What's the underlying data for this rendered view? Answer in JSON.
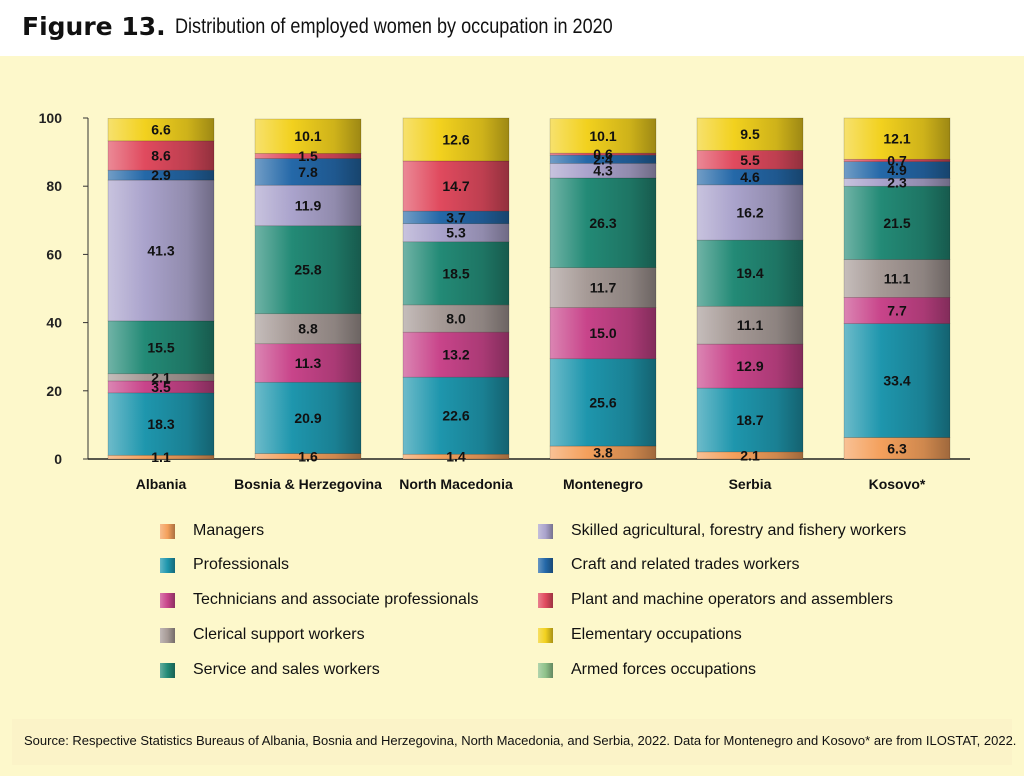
{
  "figure": {
    "label": "Figure 13.",
    "title": "Distribution of employed women by occupation in 2020"
  },
  "source": "Source: Respective Statistics Bureaus of Albania, Bosnia and Herzegovina, North Macedonia, and Serbia, 2022. Data for Montenegro and Kosovo* are from ILOSTAT, 2022.",
  "legend": [
    {
      "name": "Managers",
      "color": "#f4a05c"
    },
    {
      "name": "Skilled agricultural, forestry and fishery workers",
      "color": "#aaa3cc"
    },
    {
      "name": "Professionals",
      "color": "#1e96ad"
    },
    {
      "name": "Craft and related trades workers",
      "color": "#2468a8"
    },
    {
      "name": "Technicians and associate professionals",
      "color": "#c8448a"
    },
    {
      "name": "Plant and machine operators and assemblers",
      "color": "#e04a5e"
    },
    {
      "name": "Clerical support workers",
      "color": "#a69a96"
    },
    {
      "name": "Elementary occupations",
      "color": "#f2d11e"
    },
    {
      "name": "Service and sales workers",
      "color": "#238a76"
    },
    {
      "name": "Armed forces occupations",
      "color": "#8fc28a"
    }
  ],
  "chart_data": {
    "type": "bar",
    "stacked": true,
    "title": "Distribution of employed women by occupation in 2020",
    "xlabel": "",
    "ylabel": "",
    "ylim": [
      0,
      100
    ],
    "yticks": [
      "0",
      "20",
      "40",
      "60",
      "80",
      "100"
    ],
    "categories": [
      "Albania",
      "Bosnia & Herzegovina",
      "North Macedonia",
      "Montenegro",
      "Serbia",
      "Kosovo*"
    ],
    "series": [
      {
        "name": "Managers",
        "color": "#f4a05c",
        "values": [
          1.1,
          1.6,
          1.4,
          3.8,
          2.1,
          6.3
        ],
        "labels": [
          "1.1",
          "1.6",
          "1.4",
          "3.8",
          "2.1",
          "6.3"
        ]
      },
      {
        "name": "Professionals",
        "color": "#1e96ad",
        "values": [
          18.3,
          20.9,
          22.6,
          25.6,
          18.7,
          33.4
        ],
        "labels": [
          "18.3",
          "20.9",
          "22.6",
          "25.6",
          "18.7",
          "33.4"
        ]
      },
      {
        "name": "Technicians and associate professionals",
        "color": "#c8448a",
        "values": [
          3.5,
          11.3,
          13.2,
          15.0,
          12.9,
          7.7
        ],
        "labels": [
          "3.5",
          "11.3",
          "13.2",
          "15.0",
          "12.9",
          "7.7"
        ]
      },
      {
        "name": "Clerical support workers",
        "color": "#a69a96",
        "values": [
          2.1,
          8.8,
          8.0,
          11.7,
          11.1,
          11.1
        ],
        "labels": [
          "2.1",
          "8.8",
          "8.0",
          "11.7",
          "11.1",
          "11.1"
        ]
      },
      {
        "name": "Service and sales workers",
        "color": "#238a76",
        "values": [
          15.5,
          25.8,
          18.5,
          26.3,
          19.4,
          21.5
        ],
        "labels": [
          "15.5",
          "25.8",
          "18.5",
          "26.3",
          "19.4",
          "21.5"
        ]
      },
      {
        "name": "Skilled agricultural, forestry and fishery workers",
        "color": "#aaa3cc",
        "values": [
          41.3,
          11.9,
          5.3,
          4.3,
          16.2,
          2.3
        ],
        "labels": [
          "41.3",
          "11.9",
          "5.3",
          "4.3",
          "16.2",
          "2.3"
        ]
      },
      {
        "name": "Craft and related trades workers",
        "color": "#2468a8",
        "values": [
          2.9,
          7.8,
          3.7,
          2.4,
          4.6,
          4.9
        ],
        "labels": [
          "2.9",
          "7.8",
          "3.7",
          "2.4",
          "4.6",
          "4.9"
        ]
      },
      {
        "name": "Plant and machine operators and assemblers",
        "color": "#e04a5e",
        "values": [
          8.6,
          1.5,
          14.7,
          0.6,
          5.5,
          0.7
        ],
        "labels": [
          "8.6",
          "1.5",
          "14.7",
          "0.6",
          "5.5",
          "0.7"
        ]
      },
      {
        "name": "Elementary occupations",
        "color": "#f2d11e",
        "values": [
          6.6,
          10.1,
          12.6,
          10.1,
          9.5,
          12.1
        ],
        "labels": [
          "6.6",
          "10.1",
          "12.6",
          "10.1",
          "9.5",
          "12.1"
        ]
      },
      {
        "name": "Armed forces occupations",
        "color": "#8fc28a",
        "values": [
          0,
          0,
          0,
          0,
          0,
          0
        ],
        "labels": [
          "",
          "",
          "",
          "",
          "",
          ""
        ]
      }
    ]
  }
}
